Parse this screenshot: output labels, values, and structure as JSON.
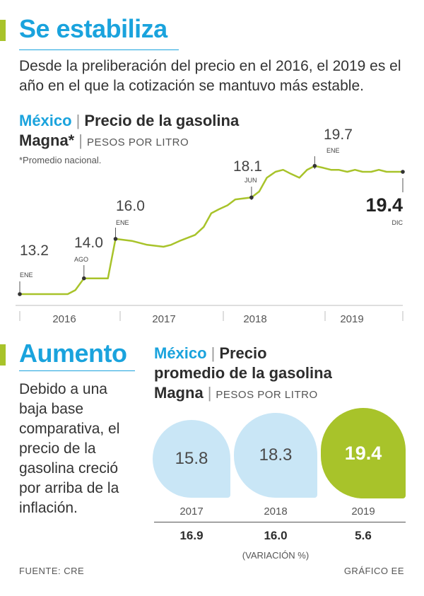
{
  "section1": {
    "title": "Se estabiliza",
    "intro": "Desde la preliberación del precio en el 2016, el 2019 es el año en el que la cotización se mantuvo más estable.",
    "chart_country": "México",
    "chart_title_1": "Precio de la gasolina",
    "chart_title_2": "Magna*",
    "chart_unit": "PESOS POR LITRO",
    "footnote": "*Promedio nacional."
  },
  "section2": {
    "title": "Aumento",
    "text": "Debido a una baja base comparativa, el precio de la gasolina creció por arriba de la inflación.",
    "chart_country": "México",
    "chart_title_1": "Precio",
    "chart_title_2": "promedio de la gasolina",
    "chart_title_3": "Magna",
    "chart_unit": "PESOS POR LITRO",
    "variation_label": "(VARIACIÓN %)"
  },
  "footer": {
    "source": "FUENTE: CRE",
    "credit": "GRÁFICO EE"
  },
  "colors": {
    "accent": "#a8c32a",
    "brand": "#1aa3dd",
    "bubble_light": "#c9e6f6"
  },
  "chart_data": [
    {
      "type": "line",
      "title": "Precio de la gasolina Magna*",
      "ylabel": "PESOS POR LITRO",
      "x_ticks": [
        "2016",
        "2017",
        "2018",
        "2019"
      ],
      "x_range": [
        2016.0,
        2020.0
      ],
      "ylim": [
        12.5,
        20.5
      ],
      "grid": false,
      "series": [
        {
          "x": [
            2016.0,
            2016.5,
            2016.58,
            2016.67,
            2016.92,
            2017.0,
            2017.17,
            2017.33,
            2017.5,
            2017.58,
            2017.67,
            2017.83,
            2017.92,
            2018.0,
            2018.08,
            2018.17,
            2018.25,
            2018.42,
            2018.5,
            2018.58,
            2018.67,
            2018.75,
            2018.83,
            2018.92,
            2019.0,
            2019.08,
            2019.17,
            2019.25,
            2019.33,
            2019.42,
            2019.5,
            2019.58,
            2019.67,
            2019.75,
            2019.83,
            2019.92,
            2020.0
          ],
          "y": [
            13.2,
            13.2,
            13.4,
            14.0,
            14.0,
            16.0,
            15.9,
            15.7,
            15.6,
            15.7,
            15.9,
            16.2,
            16.6,
            17.3,
            17.5,
            17.7,
            18.0,
            18.1,
            18.4,
            19.1,
            19.4,
            19.5,
            19.3,
            19.1,
            19.5,
            19.7,
            19.6,
            19.5,
            19.5,
            19.4,
            19.5,
            19.4,
            19.4,
            19.5,
            19.4,
            19.4,
            19.4
          ]
        }
      ],
      "annotations": [
        {
          "x": 2016.0,
          "y": 13.2,
          "value": "13.2",
          "month": "ENE"
        },
        {
          "x": 2016.67,
          "y": 14.0,
          "value": "14.0",
          "month": "AGO"
        },
        {
          "x": 2017.0,
          "y": 16.0,
          "value": "16.0",
          "month": "ENE"
        },
        {
          "x": 2018.42,
          "y": 18.1,
          "value": "18.1",
          "month": "JUN"
        },
        {
          "x": 2019.08,
          "y": 19.7,
          "value": "19.7",
          "month": "ENE"
        },
        {
          "x": 2020.0,
          "y": 19.4,
          "value": "19.4",
          "month": "DIC"
        }
      ]
    },
    {
      "type": "bar",
      "title": "Precio promedio de la gasolina Magna",
      "ylabel": "PESOS POR LITRO",
      "categories": [
        "2017",
        "2018",
        "2019"
      ],
      "values": [
        15.8,
        18.3,
        19.4
      ],
      "value_labels": [
        "15.8",
        "18.3",
        "19.4"
      ],
      "variation": [
        "16.9",
        "16.0",
        "5.6"
      ]
    }
  ]
}
